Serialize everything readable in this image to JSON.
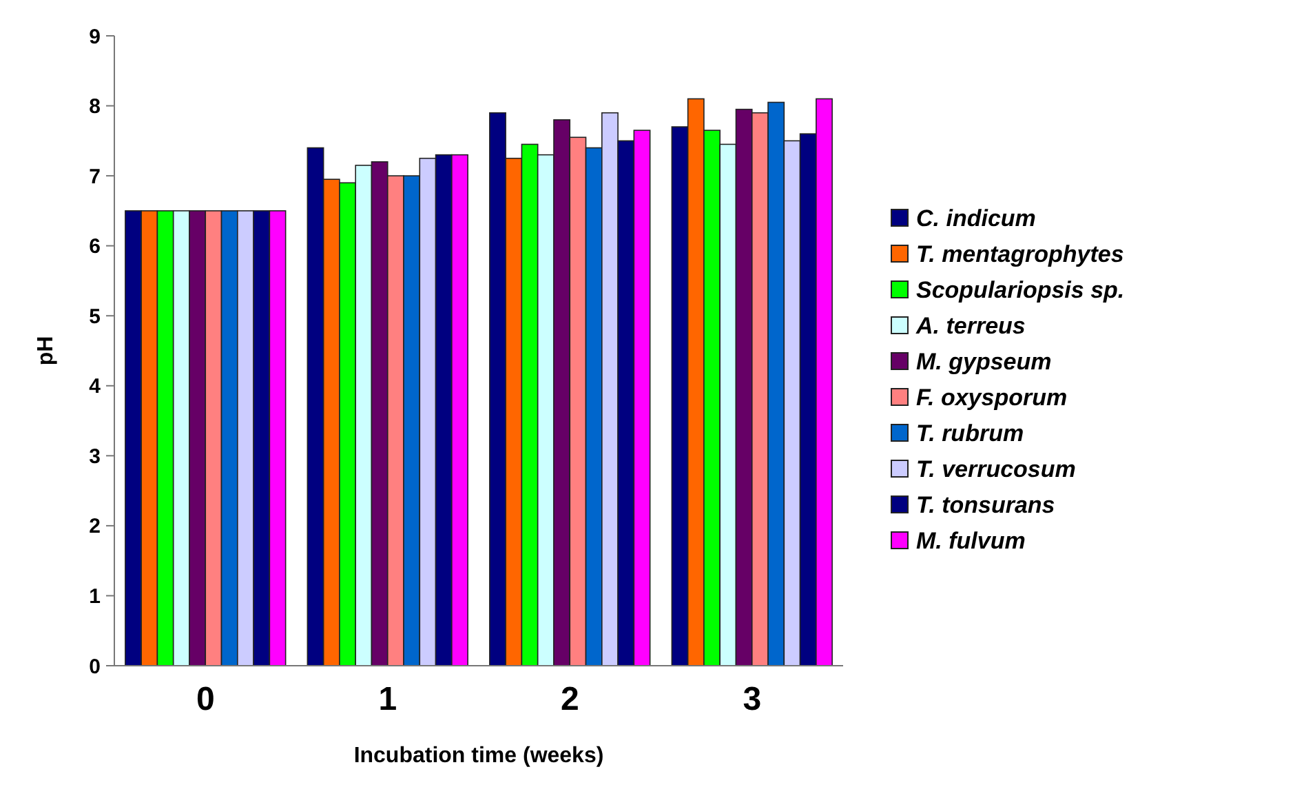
{
  "chart_data": {
    "type": "bar",
    "xlabel": "Incubation time (weeks)",
    "ylabel": "pH",
    "categories": [
      "0",
      "1",
      "2",
      "3"
    ],
    "ylim": [
      0,
      9
    ],
    "yticks": [
      0,
      1,
      2,
      3,
      4,
      5,
      6,
      7,
      8,
      9
    ],
    "grid": false,
    "legend": "right",
    "series": [
      {
        "name": "C. indicum",
        "color": "#000080",
        "values": [
          6.5,
          7.4,
          7.9,
          7.7
        ]
      },
      {
        "name": "T. mentagrophytes",
        "color": "#ff6600",
        "values": [
          6.5,
          6.95,
          7.25,
          8.1
        ]
      },
      {
        "name": "Scopulariopsis sp.",
        "color": "#00ff00",
        "values": [
          6.5,
          6.9,
          7.45,
          7.65
        ]
      },
      {
        "name": "A. terreus",
        "color": "#ccffff",
        "values": [
          6.5,
          7.15,
          7.3,
          7.45
        ]
      },
      {
        "name": "M. gypseum",
        "color": "#660066",
        "values": [
          6.5,
          7.2,
          7.8,
          7.95
        ]
      },
      {
        "name": "F. oxysporum",
        "color": "#ff8080",
        "values": [
          6.5,
          7.0,
          7.55,
          7.9
        ]
      },
      {
        "name": "T. rubrum",
        "color": "#0066cc",
        "values": [
          6.5,
          7.0,
          7.4,
          8.05
        ]
      },
      {
        "name": "T. verrucosum",
        "color": "#ccccff",
        "values": [
          6.5,
          7.25,
          7.9,
          7.5
        ]
      },
      {
        "name": "T. tonsurans",
        "color": "#000080",
        "values": [
          6.5,
          7.3,
          7.5,
          7.6
        ]
      },
      {
        "name": "M. fulvum",
        "color": "#ff00ff",
        "values": [
          6.5,
          7.3,
          7.65,
          8.1
        ]
      }
    ]
  }
}
